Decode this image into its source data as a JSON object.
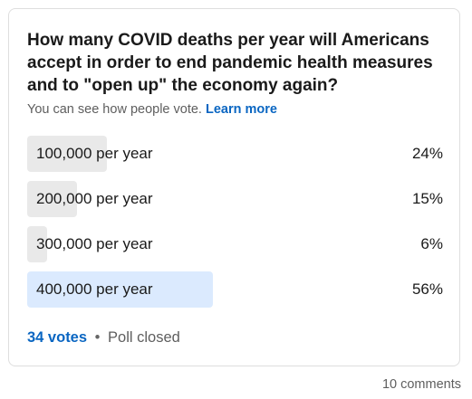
{
  "poll": {
    "question": "How many COVID deaths per year will Americans accept in order to end pandemic health measures and to \"open up\" the economy again?",
    "subtitle_text": "You can see how people vote.",
    "learn_more": "Learn more",
    "options": [
      {
        "label": "100,000 per year",
        "percent_text": "24%",
        "percent": 24
      },
      {
        "label": "200,000 per year",
        "percent_text": "15%",
        "percent": 15
      },
      {
        "label": "300,000 per year",
        "percent_text": "6%",
        "percent": 6
      },
      {
        "label": "400,000 per year",
        "percent_text": "56%",
        "percent": 56
      }
    ],
    "votes": "34 votes",
    "separator": "•",
    "status": "Poll closed"
  },
  "comments": "10 comments",
  "colors": {
    "bar": "#e9e9e9",
    "leading_bar": "#dbeafe",
    "link": "#0a66c2"
  }
}
